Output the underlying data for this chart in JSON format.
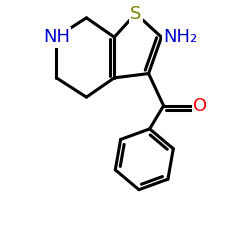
{
  "background_color": "#ffffff",
  "atom_colors": {
    "C": "#000000",
    "N": "#0000cc",
    "O": "#ff0000",
    "S": "#808000"
  },
  "bond_color": "#000000",
  "bond_width": 2.2,
  "xlim": [
    -0.3,
    4.0
  ],
  "ylim": [
    -3.8,
    2.0
  ],
  "figsize": [
    2.5,
    2.5
  ],
  "dpi": 100,
  "font_size": 12
}
